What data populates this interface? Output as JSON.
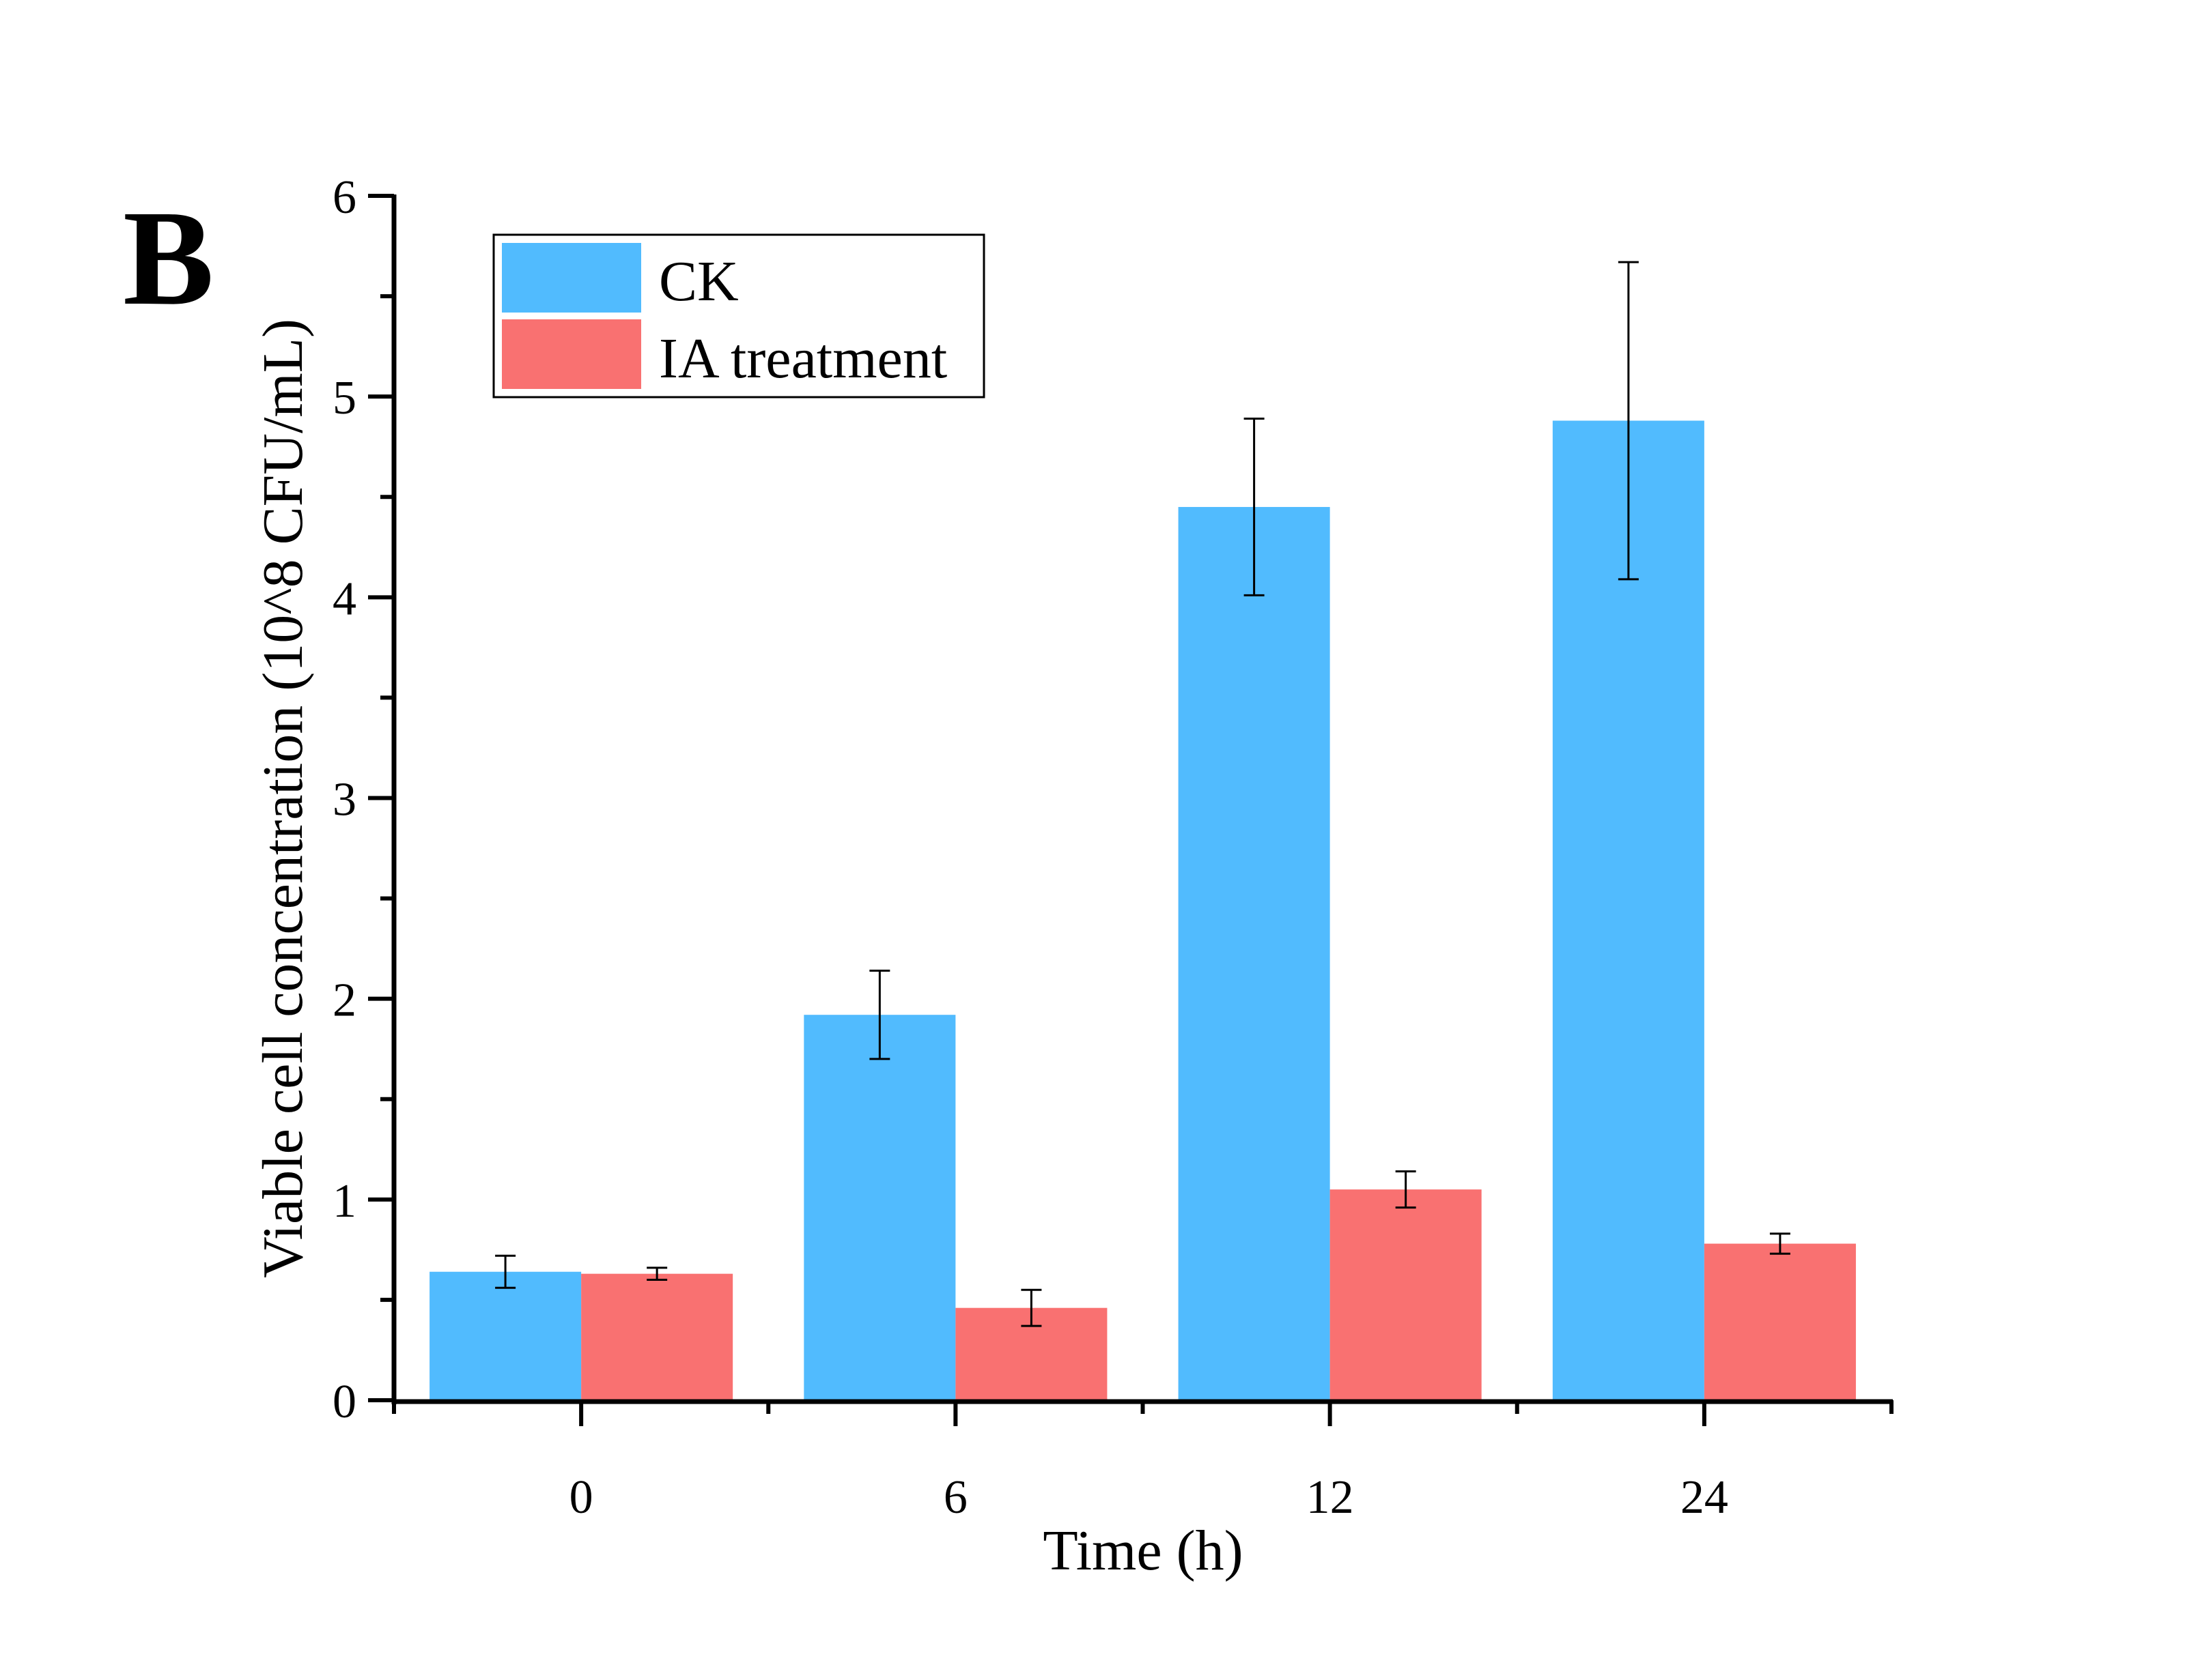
{
  "panel_label": "B",
  "chart_data": {
    "type": "bar",
    "title": "",
    "xlabel": "Time (h)",
    "ylabel": "Viable cell concentration (10^8 CFU/mL)",
    "categories": [
      "0",
      "6",
      "12",
      "24"
    ],
    "ylim": [
      0,
      6
    ],
    "yticks": [
      "0",
      "1",
      "2",
      "3",
      "4",
      "5",
      "6"
    ],
    "grid": false,
    "legend_position": "top-left",
    "series": [
      {
        "name": "CK",
        "color": "#51BBFE",
        "values": [
          0.64,
          1.92,
          4.45,
          4.88
        ],
        "error": [
          0.08,
          0.22,
          0.44,
          0.79
        ]
      },
      {
        "name": "IA treatment",
        "color": "#F97171",
        "values": [
          0.63,
          0.46,
          1.05,
          0.78
        ],
        "error": [
          0.03,
          0.09,
          0.09,
          0.05
        ]
      }
    ]
  }
}
